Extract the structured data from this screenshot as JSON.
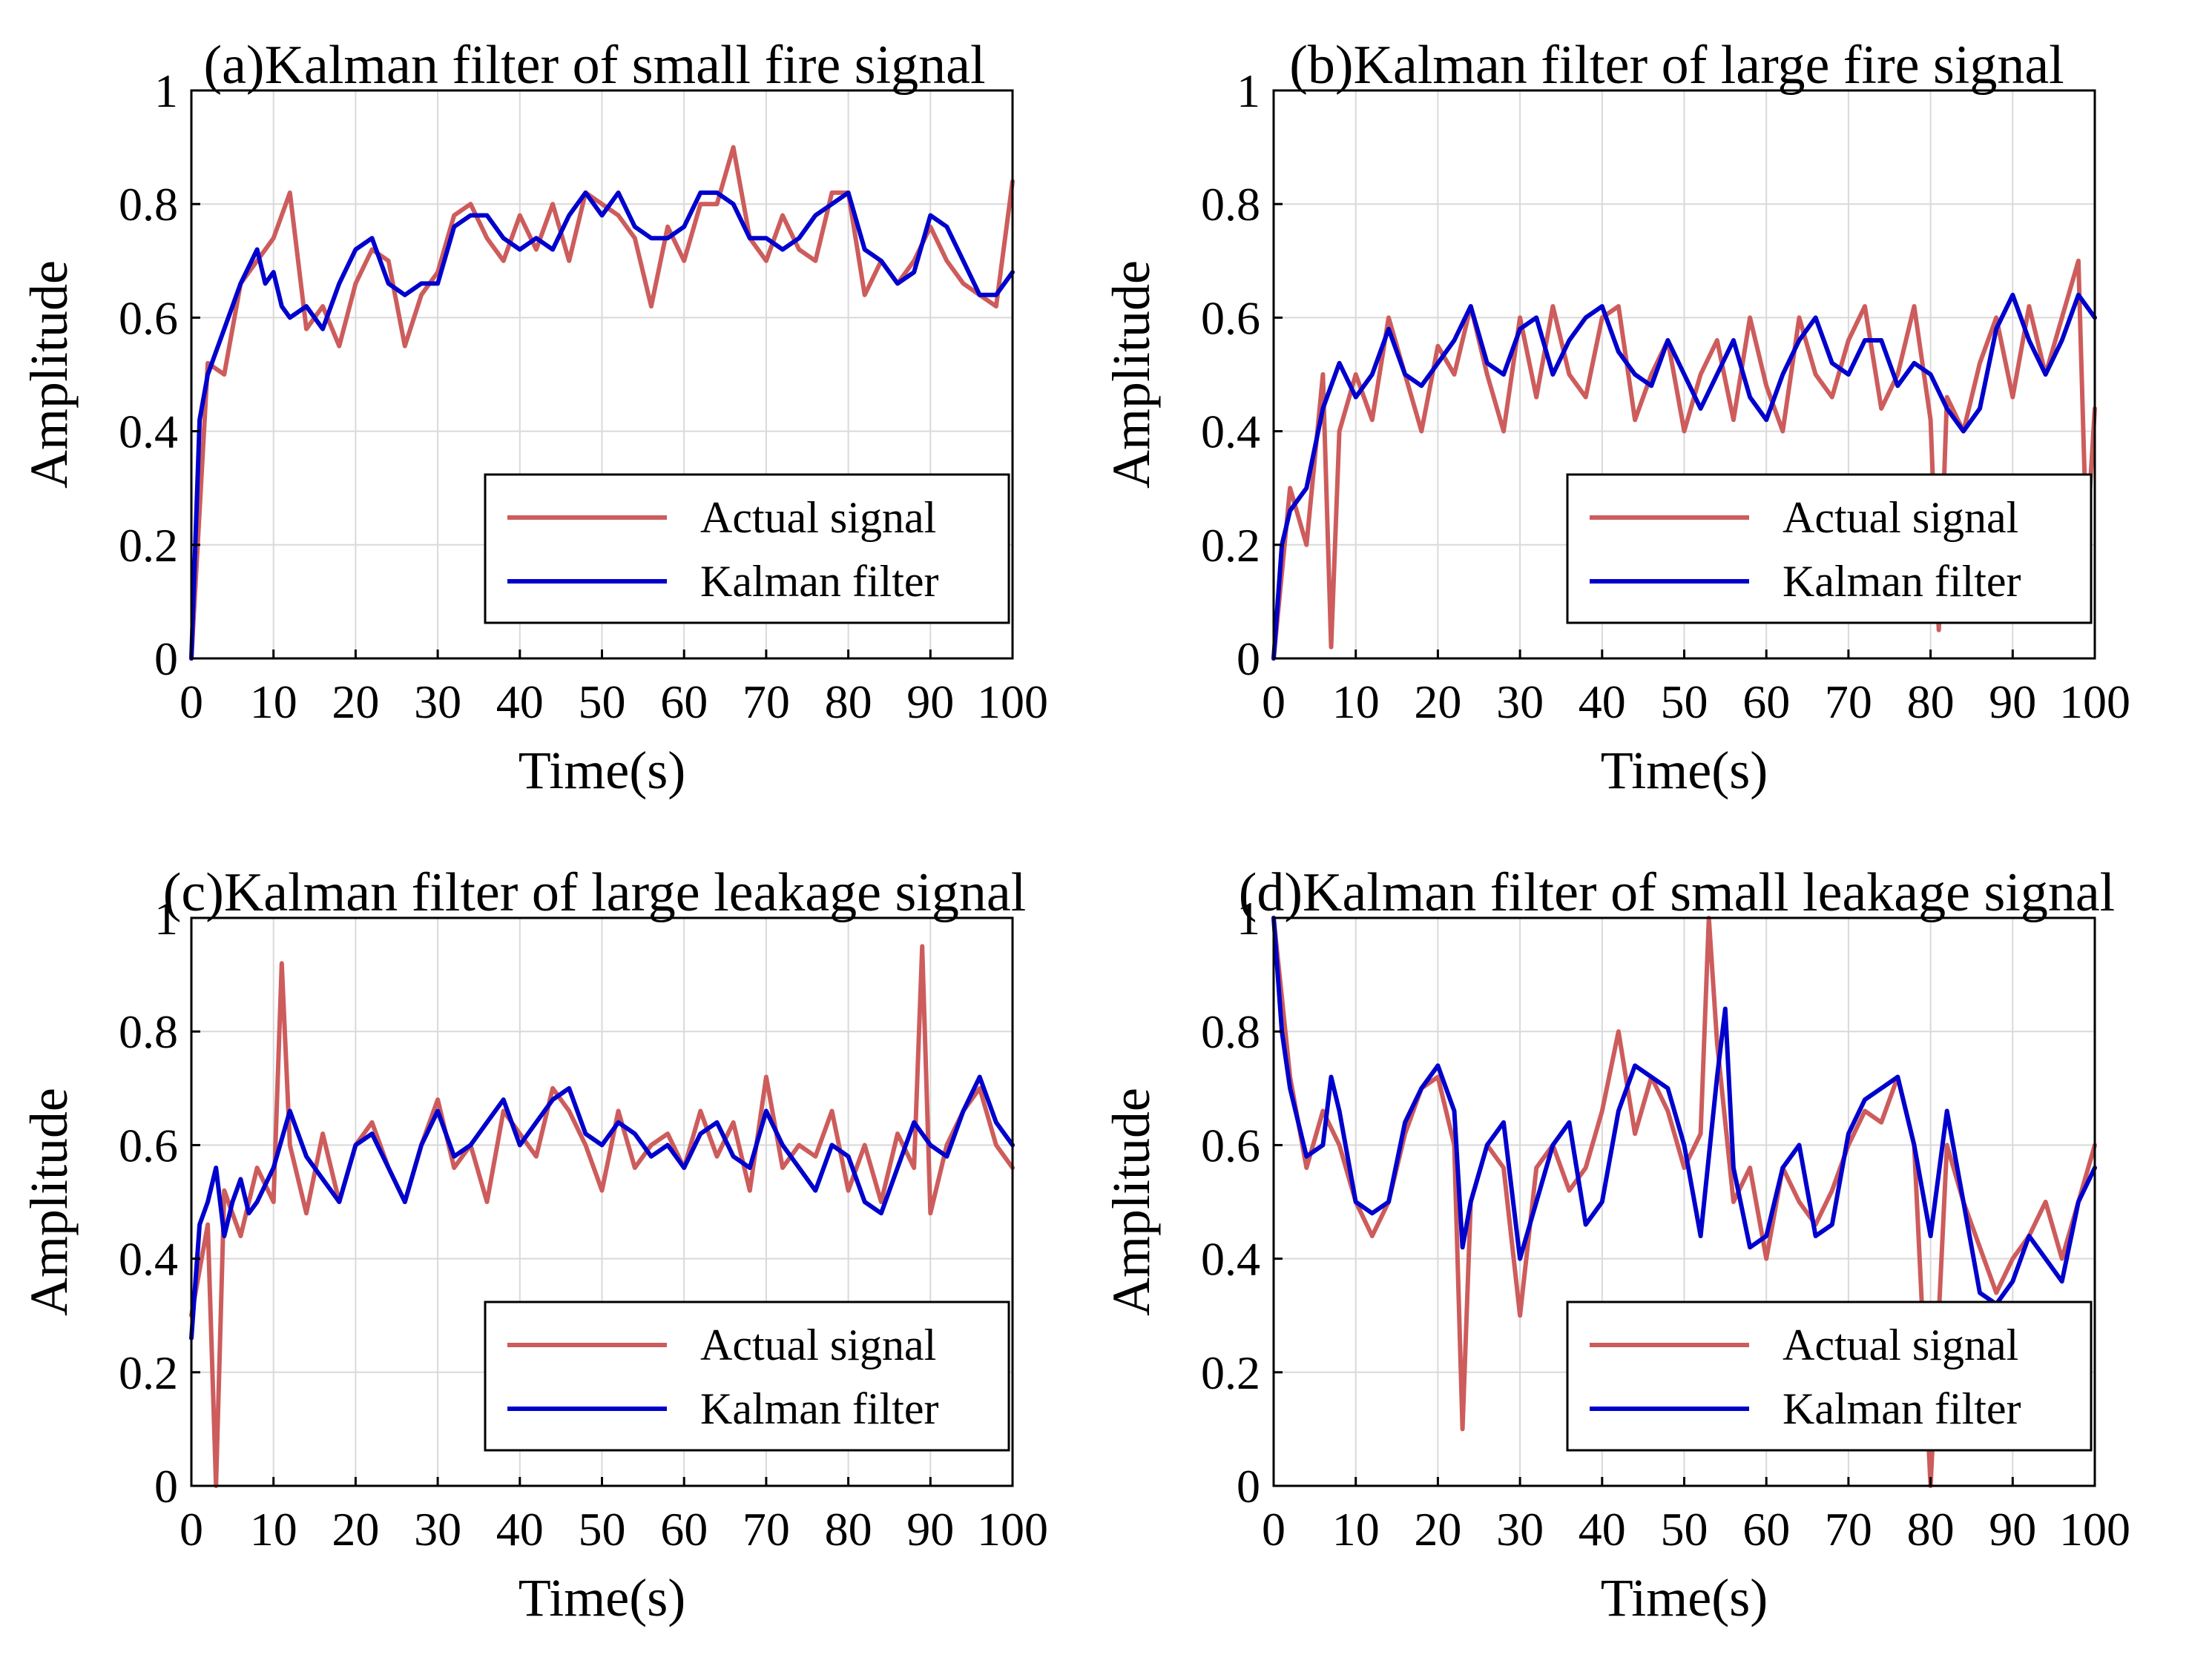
{
  "chart_data": [
    {
      "type": "line",
      "title": "(a)Kalman filter of small fire signal",
      "xlabel": "Time(s)",
      "ylabel": "Amplitude",
      "xlim": [
        0,
        100
      ],
      "ylim": [
        0,
        1
      ],
      "xticks": [
        0,
        10,
        20,
        30,
        40,
        50,
        60,
        70,
        80,
        90,
        100
      ],
      "yticks": [
        0,
        0.2,
        0.4,
        0.6,
        0.8,
        1
      ],
      "ytick_labels": [
        "0",
        "0.2",
        "0.4",
        "0.6",
        "0.8",
        "1"
      ],
      "grid": true,
      "legend_position": "bottom-right",
      "series": [
        {
          "name": "Actual signal",
          "color": "#cd5c5c",
          "x": [
            0,
            2,
            4,
            6,
            8,
            10,
            12,
            14,
            16,
            18,
            20,
            22,
            24,
            26,
            28,
            30,
            32,
            34,
            36,
            38,
            40,
            42,
            44,
            46,
            48,
            50,
            52,
            54,
            56,
            58,
            60,
            62,
            64,
            66,
            68,
            70,
            72,
            74,
            76,
            78,
            80,
            82,
            84,
            86,
            88,
            90,
            92,
            94,
            96,
            98,
            100
          ],
          "y": [
            0,
            0.52,
            0.5,
            0.66,
            0.7,
            0.74,
            0.82,
            0.58,
            0.62,
            0.55,
            0.66,
            0.72,
            0.7,
            0.55,
            0.64,
            0.68,
            0.78,
            0.8,
            0.74,
            0.7,
            0.78,
            0.72,
            0.8,
            0.7,
            0.82,
            0.8,
            0.78,
            0.74,
            0.62,
            0.76,
            0.7,
            0.8,
            0.8,
            0.9,
            0.74,
            0.7,
            0.78,
            0.72,
            0.7,
            0.82,
            0.82,
            0.64,
            0.7,
            0.66,
            0.7,
            0.76,
            0.7,
            0.66,
            0.64,
            0.62,
            0.84
          ]
        },
        {
          "name": "Kalman filter",
          "color": "#0000cd",
          "x": [
            0,
            1,
            2,
            4,
            6,
            8,
            9,
            10,
            11,
            12,
            14,
            16,
            18,
            20,
            22,
            24,
            26,
            28,
            30,
            32,
            34,
            36,
            38,
            40,
            42,
            44,
            46,
            48,
            50,
            52,
            54,
            56,
            58,
            60,
            62,
            64,
            66,
            68,
            70,
            72,
            74,
            76,
            78,
            80,
            82,
            84,
            86,
            88,
            90,
            92,
            94,
            96,
            98,
            100
          ],
          "y": [
            0,
            0.42,
            0.5,
            0.58,
            0.66,
            0.72,
            0.66,
            0.68,
            0.62,
            0.6,
            0.62,
            0.58,
            0.66,
            0.72,
            0.74,
            0.66,
            0.64,
            0.66,
            0.66,
            0.76,
            0.78,
            0.78,
            0.74,
            0.72,
            0.74,
            0.72,
            0.78,
            0.82,
            0.78,
            0.82,
            0.76,
            0.74,
            0.74,
            0.76,
            0.82,
            0.82,
            0.8,
            0.74,
            0.74,
            0.72,
            0.74,
            0.78,
            0.8,
            0.82,
            0.72,
            0.7,
            0.66,
            0.68,
            0.78,
            0.76,
            0.7,
            0.64,
            0.64,
            0.68
          ]
        }
      ]
    },
    {
      "type": "line",
      "title": "(b)Kalman filter of large fire signal",
      "xlabel": "Time(s)",
      "ylabel": "Amplitude",
      "xlim": [
        0,
        100
      ],
      "ylim": [
        0,
        1
      ],
      "xticks": [
        0,
        10,
        20,
        30,
        40,
        50,
        60,
        70,
        80,
        90,
        100
      ],
      "yticks": [
        0,
        0.2,
        0.4,
        0.6,
        0.8,
        1
      ],
      "ytick_labels": [
        "0",
        "0.2",
        "0.4",
        "0.6",
        "0.8",
        "1"
      ],
      "grid": true,
      "legend_position": "bottom-right",
      "series": [
        {
          "name": "Actual signal",
          "color": "#cd5c5c",
          "x": [
            0,
            2,
            4,
            6,
            7,
            8,
            10,
            12,
            14,
            16,
            18,
            20,
            22,
            24,
            26,
            28,
            30,
            32,
            34,
            36,
            38,
            40,
            42,
            44,
            46,
            48,
            50,
            52,
            54,
            56,
            58,
            60,
            62,
            64,
            66,
            68,
            70,
            72,
            74,
            76,
            78,
            80,
            81,
            82,
            84,
            86,
            88,
            90,
            92,
            94,
            96,
            98,
            99,
            100
          ],
          "y": [
            0,
            0.3,
            0.2,
            0.5,
            0.02,
            0.4,
            0.5,
            0.42,
            0.6,
            0.5,
            0.4,
            0.55,
            0.5,
            0.62,
            0.5,
            0.4,
            0.6,
            0.46,
            0.62,
            0.5,
            0.46,
            0.6,
            0.62,
            0.42,
            0.5,
            0.56,
            0.4,
            0.5,
            0.56,
            0.42,
            0.6,
            0.48,
            0.4,
            0.6,
            0.5,
            0.46,
            0.56,
            0.62,
            0.44,
            0.5,
            0.62,
            0.42,
            0.05,
            0.46,
            0.4,
            0.52,
            0.6,
            0.46,
            0.62,
            0.5,
            0.6,
            0.7,
            0.2,
            0.44
          ]
        },
        {
          "name": "Kalman filter",
          "color": "#0000cd",
          "x": [
            0,
            1,
            2,
            4,
            6,
            8,
            10,
            12,
            14,
            16,
            18,
            20,
            22,
            24,
            26,
            28,
            30,
            32,
            34,
            36,
            38,
            40,
            42,
            44,
            46,
            48,
            50,
            52,
            54,
            56,
            58,
            60,
            62,
            64,
            66,
            68,
            70,
            72,
            74,
            76,
            78,
            80,
            82,
            84,
            86,
            88,
            90,
            92,
            94,
            96,
            98,
            100
          ],
          "y": [
            0,
            0.2,
            0.26,
            0.3,
            0.44,
            0.52,
            0.46,
            0.5,
            0.58,
            0.5,
            0.48,
            0.52,
            0.56,
            0.62,
            0.52,
            0.5,
            0.58,
            0.6,
            0.5,
            0.56,
            0.6,
            0.62,
            0.54,
            0.5,
            0.48,
            0.56,
            0.5,
            0.44,
            0.5,
            0.56,
            0.46,
            0.42,
            0.5,
            0.56,
            0.6,
            0.52,
            0.5,
            0.56,
            0.56,
            0.48,
            0.52,
            0.5,
            0.44,
            0.4,
            0.44,
            0.58,
            0.64,
            0.56,
            0.5,
            0.56,
            0.64,
            0.6
          ]
        }
      ]
    },
    {
      "type": "line",
      "title": "(c)Kalman filter of large leakage signal",
      "xlabel": "Time(s)",
      "ylabel": "Amplitude",
      "xlim": [
        0,
        100
      ],
      "ylim": [
        0,
        1
      ],
      "xticks": [
        0,
        10,
        20,
        30,
        40,
        50,
        60,
        70,
        80,
        90,
        100
      ],
      "yticks": [
        0,
        0.2,
        0.4,
        0.6,
        0.8,
        1
      ],
      "ytick_labels": [
        "0",
        "0.2",
        "0.4",
        "0.6",
        "0.8",
        "1"
      ],
      "grid": true,
      "legend_position": "bottom-right",
      "series": [
        {
          "name": "Actual signal",
          "color": "#cd5c5c",
          "x": [
            0,
            2,
            3,
            4,
            6,
            8,
            10,
            11,
            12,
            14,
            16,
            18,
            20,
            22,
            24,
            26,
            28,
            30,
            32,
            34,
            36,
            38,
            40,
            42,
            44,
            46,
            48,
            50,
            52,
            54,
            56,
            58,
            60,
            62,
            64,
            66,
            68,
            70,
            72,
            74,
            76,
            78,
            80,
            82,
            84,
            86,
            88,
            89,
            90,
            92,
            94,
            96,
            98,
            100
          ],
          "y": [
            0.3,
            0.46,
            0.0,
            0.52,
            0.44,
            0.56,
            0.5,
            0.92,
            0.6,
            0.48,
            0.62,
            0.5,
            0.6,
            0.64,
            0.56,
            0.5,
            0.6,
            0.68,
            0.56,
            0.6,
            0.5,
            0.66,
            0.62,
            0.58,
            0.7,
            0.66,
            0.6,
            0.52,
            0.66,
            0.56,
            0.6,
            0.62,
            0.56,
            0.66,
            0.58,
            0.64,
            0.52,
            0.72,
            0.56,
            0.6,
            0.58,
            0.66,
            0.52,
            0.6,
            0.5,
            0.62,
            0.56,
            0.95,
            0.48,
            0.6,
            0.66,
            0.7,
            0.6,
            0.56
          ]
        },
        {
          "name": "Kalman filter",
          "color": "#0000cd",
          "x": [
            0,
            1,
            2,
            3,
            4,
            5,
            6,
            7,
            8,
            10,
            12,
            14,
            16,
            18,
            20,
            22,
            24,
            26,
            28,
            30,
            32,
            34,
            36,
            38,
            40,
            42,
            44,
            46,
            48,
            50,
            52,
            54,
            56,
            58,
            60,
            62,
            64,
            66,
            68,
            70,
            72,
            74,
            76,
            78,
            80,
            82,
            84,
            86,
            88,
            90,
            92,
            94,
            96,
            98,
            100
          ],
          "y": [
            0.26,
            0.46,
            0.5,
            0.56,
            0.44,
            0.5,
            0.54,
            0.48,
            0.5,
            0.56,
            0.66,
            0.58,
            0.54,
            0.5,
            0.6,
            0.62,
            0.56,
            0.5,
            0.6,
            0.66,
            0.58,
            0.6,
            0.64,
            0.68,
            0.6,
            0.64,
            0.68,
            0.7,
            0.62,
            0.6,
            0.64,
            0.62,
            0.58,
            0.6,
            0.56,
            0.62,
            0.64,
            0.58,
            0.56,
            0.66,
            0.6,
            0.56,
            0.52,
            0.6,
            0.58,
            0.5,
            0.48,
            0.56,
            0.64,
            0.6,
            0.58,
            0.66,
            0.72,
            0.64,
            0.6
          ]
        }
      ]
    },
    {
      "type": "line",
      "title": "(d)Kalman filter of small leakage signal",
      "xlabel": "Time(s)",
      "ylabel": "Amplitude",
      "xlim": [
        0,
        100
      ],
      "ylim": [
        0,
        1
      ],
      "xticks": [
        0,
        10,
        20,
        30,
        40,
        50,
        60,
        70,
        80,
        90,
        100
      ],
      "yticks": [
        0,
        0.2,
        0.4,
        0.6,
        0.8,
        1
      ],
      "ytick_labels": [
        "0",
        "0.2",
        "0.4",
        "0.6",
        "0.8",
        "1"
      ],
      "grid": true,
      "legend_position": "bottom-right",
      "series": [
        {
          "name": "Actual signal",
          "color": "#cd5c5c",
          "x": [
            0,
            2,
            4,
            6,
            8,
            10,
            12,
            14,
            16,
            18,
            20,
            22,
            23,
            24,
            26,
            28,
            30,
            32,
            34,
            36,
            38,
            40,
            42,
            44,
            46,
            48,
            50,
            52,
            53,
            54,
            56,
            58,
            60,
            62,
            64,
            66,
            68,
            70,
            72,
            74,
            76,
            78,
            80,
            82,
            84,
            86,
            88,
            90,
            92,
            94,
            96,
            98,
            100
          ],
          "y": [
            1.0,
            0.72,
            0.56,
            0.66,
            0.6,
            0.5,
            0.44,
            0.5,
            0.62,
            0.7,
            0.72,
            0.6,
            0.1,
            0.5,
            0.6,
            0.56,
            0.3,
            0.56,
            0.6,
            0.52,
            0.56,
            0.66,
            0.8,
            0.62,
            0.72,
            0.66,
            0.56,
            0.62,
            1.0,
            0.78,
            0.5,
            0.56,
            0.4,
            0.56,
            0.5,
            0.46,
            0.52,
            0.6,
            0.66,
            0.64,
            0.72,
            0.6,
            0.0,
            0.6,
            0.5,
            0.42,
            0.34,
            0.4,
            0.44,
            0.5,
            0.4,
            0.5,
            0.6
          ]
        },
        {
          "name": "Kalman filter",
          "color": "#0000cd",
          "x": [
            0,
            1,
            2,
            4,
            6,
            7,
            8,
            10,
            12,
            14,
            16,
            18,
            20,
            22,
            23,
            24,
            26,
            28,
            30,
            32,
            34,
            36,
            38,
            40,
            42,
            44,
            46,
            48,
            50,
            52,
            54,
            55,
            56,
            58,
            60,
            62,
            64,
            66,
            68,
            70,
            72,
            74,
            76,
            78,
            80,
            82,
            84,
            86,
            88,
            90,
            92,
            94,
            96,
            98,
            100
          ],
          "y": [
            1.0,
            0.8,
            0.7,
            0.58,
            0.6,
            0.72,
            0.66,
            0.5,
            0.48,
            0.5,
            0.64,
            0.7,
            0.74,
            0.66,
            0.42,
            0.5,
            0.6,
            0.64,
            0.4,
            0.5,
            0.6,
            0.64,
            0.46,
            0.5,
            0.66,
            0.74,
            0.72,
            0.7,
            0.6,
            0.44,
            0.72,
            0.84,
            0.56,
            0.42,
            0.44,
            0.56,
            0.6,
            0.44,
            0.46,
            0.62,
            0.68,
            0.7,
            0.72,
            0.6,
            0.44,
            0.66,
            0.5,
            0.34,
            0.32,
            0.36,
            0.44,
            0.4,
            0.36,
            0.5,
            0.56
          ]
        }
      ]
    }
  ]
}
